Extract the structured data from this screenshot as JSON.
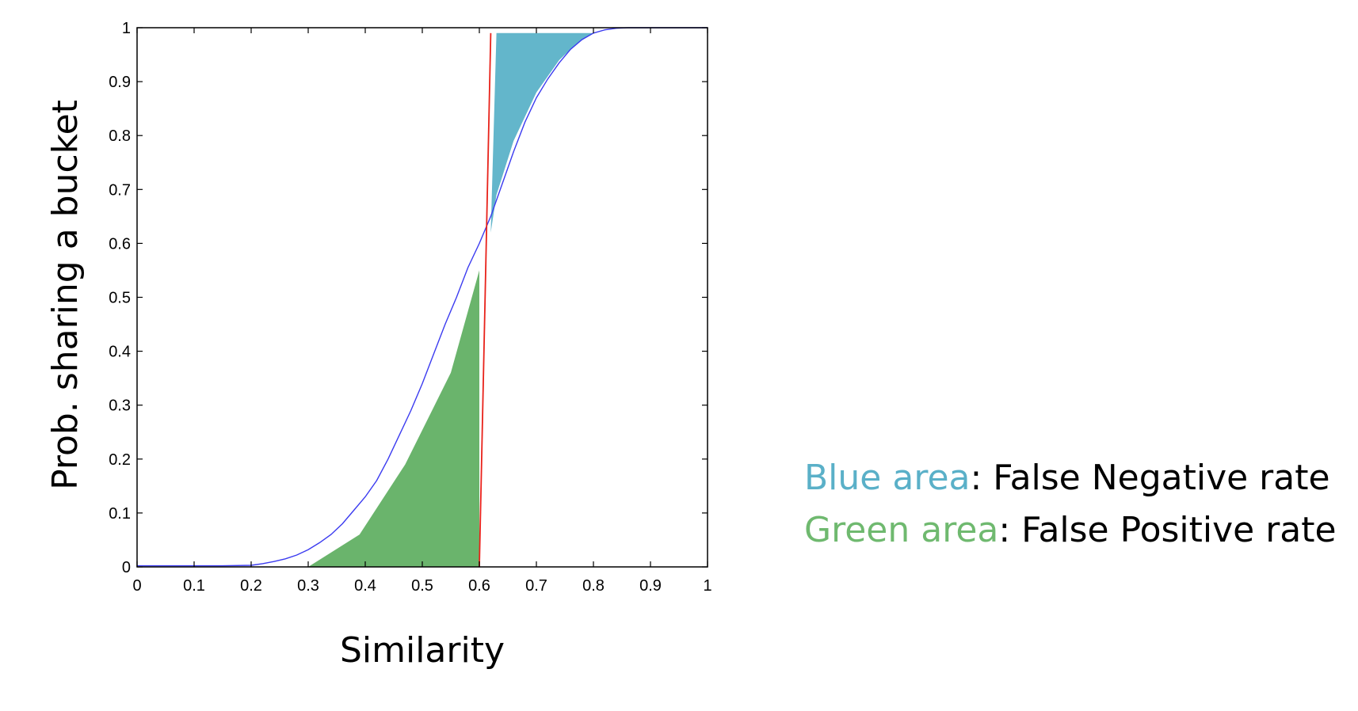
{
  "chart_data": {
    "type": "area",
    "xlabel": "Similarity",
    "ylabel": "Prob. sharing a bucket",
    "xlim": [
      0,
      1
    ],
    "ylim": [
      0,
      1
    ],
    "x_ticks": [
      0,
      0.1,
      0.2,
      0.3,
      0.4,
      0.5,
      0.6,
      0.7,
      0.8,
      0.9,
      1
    ],
    "y_ticks": [
      0,
      0.1,
      0.2,
      0.3,
      0.4,
      0.5,
      0.6,
      0.7,
      0.8,
      0.9,
      1
    ],
    "x_tick_labels": [
      "0",
      "0.1",
      "0.2",
      "0.3",
      "0.4",
      "0.5",
      "0.6",
      "0.7",
      "0.8",
      "0.9",
      "1"
    ],
    "y_tick_labels": [
      "0",
      "0.1",
      "0.2",
      "0.3",
      "0.4",
      "0.5",
      "0.6",
      "0.7",
      "0.8",
      "0.9",
      "1"
    ],
    "grid": false,
    "series": [
      {
        "color": "#3b3bf0",
        "x": [
          0,
          0.05,
          0.1,
          0.15,
          0.2,
          0.22,
          0.24,
          0.26,
          0.28,
          0.3,
          0.32,
          0.34,
          0.36,
          0.38,
          0.4,
          0.42,
          0.44,
          0.46,
          0.48,
          0.5,
          0.52,
          0.54,
          0.56,
          0.58,
          0.6,
          0.62,
          0.64,
          0.66,
          0.68,
          0.7,
          0.72,
          0.74,
          0.76,
          0.78,
          0.8,
          0.82,
          0.84,
          0.86,
          0.9,
          1.0
        ],
        "y": [
          0.002,
          0.002,
          0.002,
          0.002,
          0.003,
          0.006,
          0.01,
          0.015,
          0.022,
          0.032,
          0.045,
          0.06,
          0.08,
          0.105,
          0.13,
          0.16,
          0.2,
          0.245,
          0.29,
          0.34,
          0.395,
          0.45,
          0.5,
          0.555,
          0.6,
          0.65,
          0.71,
          0.77,
          0.825,
          0.87,
          0.905,
          0.935,
          0.96,
          0.978,
          0.99,
          0.996,
          0.999,
          1.0,
          1.0,
          1.0
        ]
      },
      {
        "color": "#e8221a",
        "x": [
          0.6,
          0.62
        ],
        "y": [
          0,
          0.99
        ]
      }
    ],
    "areas": [
      {
        "color": "#6ab46c",
        "x": [
          0.3,
          0.39,
          0.47,
          0.55,
          0.6,
          0.6
        ],
        "y": [
          0,
          0.06,
          0.19,
          0.36,
          0.55,
          0
        ]
      },
      {
        "color": "#63b6cb",
        "x": [
          0.62,
          0.63,
          0.66,
          0.7,
          0.74,
          0.77,
          0.8,
          0.63
        ],
        "y": [
          0.62,
          0.69,
          0.79,
          0.88,
          0.94,
          0.97,
          0.99,
          0.99
        ]
      }
    ]
  },
  "legend": {
    "blue_term": "Blue area",
    "blue_desc": ": False Negative rate",
    "green_term": "Green area",
    "green_desc": ": False Positive rate",
    "blue_color": "#5ab0c8",
    "green_color": "#6fb96f"
  }
}
